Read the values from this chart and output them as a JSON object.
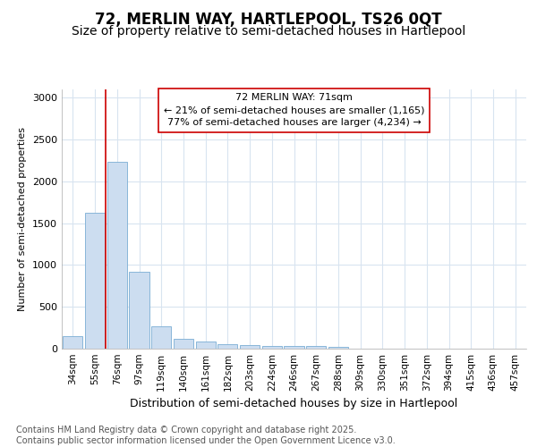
{
  "title_line1": "72, MERLIN WAY, HARTLEPOOL, TS26 0QT",
  "title_line2": "Size of property relative to semi-detached houses in Hartlepool",
  "xlabel": "Distribution of semi-detached houses by size in Hartlepool",
  "ylabel": "Number of semi-detached properties",
  "categories": [
    "34sqm",
    "55sqm",
    "76sqm",
    "97sqm",
    "119sqm",
    "140sqm",
    "161sqm",
    "182sqm",
    "203sqm",
    "224sqm",
    "246sqm",
    "267sqm",
    "288sqm",
    "309sqm",
    "330sqm",
    "351sqm",
    "372sqm",
    "394sqm",
    "415sqm",
    "436sqm",
    "457sqm"
  ],
  "values": [
    155,
    1620,
    2230,
    920,
    270,
    120,
    90,
    55,
    40,
    35,
    35,
    35,
    25,
    5,
    0,
    0,
    0,
    0,
    0,
    0,
    0
  ],
  "bar_color": "#ccddf0",
  "bar_edge_color": "#7aadd4",
  "vline_color": "#cc0000",
  "vline_x": 1.5,
  "annotation_text": "72 MERLIN WAY: 71sqm\n← 21% of semi-detached houses are smaller (1,165)\n77% of semi-detached houses are larger (4,234) →",
  "annotation_box_color": "#ffffff",
  "annotation_box_edge": "#cc0000",
  "ylim_max": 3100,
  "yticks": [
    0,
    500,
    1000,
    1500,
    2000,
    2500,
    3000
  ],
  "footnote": "Contains HM Land Registry data © Crown copyright and database right 2025.\nContains public sector information licensed under the Open Government Licence v3.0.",
  "bg_color": "#ffffff",
  "grid_color": "#d8e4f0",
  "title_fontsize": 12,
  "subtitle_fontsize": 10,
  "annot_fontsize": 8,
  "ylabel_fontsize": 8,
  "xlabel_fontsize": 9,
  "footnote_fontsize": 7
}
